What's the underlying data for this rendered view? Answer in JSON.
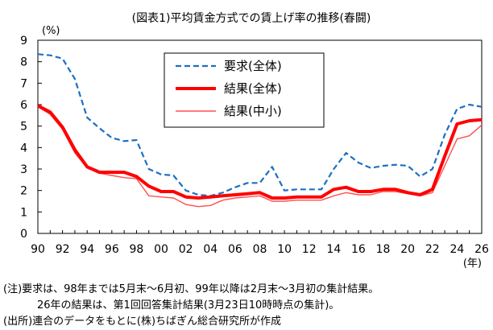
{
  "chart_data": {
    "type": "line",
    "title": "(図表1)平均賃金方式での賃上げ率の推移(春闘)",
    "ylabel": "(%)",
    "xlabel": "(年)",
    "ylim": [
      0,
      9
    ],
    "xlim": [
      1990,
      2026
    ],
    "y_ticks": [
      "0",
      "1",
      "2",
      "3",
      "4",
      "5",
      "6",
      "7",
      "8",
      "9"
    ],
    "x_ticks": [
      "90",
      "92",
      "94",
      "96",
      "98",
      "00",
      "02",
      "04",
      "06",
      "08",
      "10",
      "12",
      "14",
      "16",
      "18",
      "20",
      "22",
      "24",
      "26"
    ],
    "x": [
      1990,
      1991,
      1992,
      1993,
      1994,
      1995,
      1996,
      1997,
      1998,
      1999,
      2000,
      2001,
      2002,
      2003,
      2004,
      2005,
      2006,
      2007,
      2008,
      2009,
      2010,
      2011,
      2012,
      2013,
      2014,
      2015,
      2016,
      2017,
      2018,
      2019,
      2020,
      2021,
      2022,
      2023,
      2024,
      2025,
      2026
    ],
    "series": [
      {
        "name": "要求(全体)",
        "color": "#1f6fc0",
        "style": "dashed",
        "values": [
          8.35,
          8.3,
          8.15,
          7.2,
          5.4,
          4.9,
          4.45,
          4.3,
          4.35,
          3.0,
          2.75,
          2.7,
          2.0,
          1.8,
          1.75,
          1.9,
          2.15,
          2.35,
          2.35,
          3.1,
          2.0,
          2.05,
          2.05,
          2.05,
          3.0,
          3.75,
          3.3,
          3.05,
          3.15,
          3.2,
          3.15,
          2.65,
          3.0,
          4.6,
          5.8,
          6.0,
          5.9
        ]
      },
      {
        "name": "結果(全体)",
        "color": "#ff0000",
        "style": "solid-thick",
        "values": [
          5.95,
          5.65,
          4.95,
          3.9,
          3.1,
          2.85,
          2.85,
          2.85,
          2.65,
          2.2,
          1.95,
          1.95,
          1.7,
          1.65,
          1.7,
          1.75,
          1.8,
          1.85,
          1.9,
          1.65,
          1.65,
          1.7,
          1.7,
          1.7,
          2.05,
          2.15,
          1.95,
          1.95,
          2.05,
          2.05,
          1.9,
          1.8,
          2.05,
          3.6,
          5.1,
          5.25,
          5.3
        ]
      },
      {
        "name": "結果(中小)",
        "color": "#ff5050",
        "style": "solid-thin",
        "values": [
          5.9,
          5.55,
          4.85,
          3.75,
          3.05,
          2.8,
          2.7,
          2.6,
          2.55,
          1.75,
          1.7,
          1.65,
          1.35,
          1.25,
          1.3,
          1.55,
          1.65,
          1.7,
          1.75,
          1.5,
          1.5,
          1.55,
          1.55,
          1.55,
          1.75,
          1.9,
          1.8,
          1.8,
          1.95,
          1.95,
          1.85,
          1.75,
          1.9,
          3.15,
          4.4,
          4.55,
          5.05
        ]
      }
    ],
    "legend": [
      "要求(全体)",
      "結果(全体)",
      "結果(中小)"
    ],
    "legend_position": "top-center",
    "grid": false
  },
  "notes": {
    "line1": "(注)要求は、98年までは5月末～6月初、99年以降は2月末～3月初の集計結果。",
    "line2": "26年の結果は、第1回回答集計結果(3月23日10時時点の集計)。",
    "line3": "(出所)連合のデータをもとに(株)ちばぎん総合研究所が作成"
  }
}
